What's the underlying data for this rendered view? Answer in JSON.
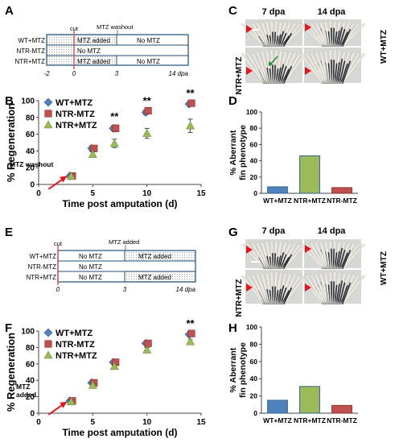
{
  "panel_letters": [
    "A",
    "B",
    "C",
    "D",
    "E",
    "F",
    "G",
    "H"
  ],
  "colors": {
    "wt_mtz": "#4f81bd",
    "ntr_mtz_minus": "#c0504d",
    "ntr_mtz_plus": "#9bbb59",
    "frame": "#1f4e79",
    "cut_line": "#d9362b",
    "arrow_red": "#e8141b",
    "arrow_green": "#1a8f2a"
  },
  "timeline_a": {
    "cut_label": "cut",
    "event_label": "MTZ washout",
    "rows": [
      {
        "label": "WT+MTZ",
        "seg1": "MTZ added",
        "seg2": "No MTZ"
      },
      {
        "label": "NTR-MTZ",
        "seg1": "No MTZ",
        "seg2": ""
      },
      {
        "label": "NTR+MTZ",
        "seg1": "MTZ added",
        "seg2": "No MTZ"
      }
    ],
    "ticks": [
      "-2",
      "0",
      "3",
      "14 dpa"
    ]
  },
  "timeline_e": {
    "cut_label": "cut",
    "event_label": "MTZ added",
    "rows": [
      {
        "label": "WT+MTZ",
        "seg1": "No MTZ",
        "seg2": "MTZ  added"
      },
      {
        "label": "NTR-MTZ",
        "seg1": "No MTZ",
        "seg2": ""
      },
      {
        "label": "NTR+MTZ",
        "seg1": "No MTZ",
        "seg2": "MTZ  added"
      }
    ],
    "ticks": [
      "0",
      "3",
      "14 dpa"
    ]
  },
  "photo_c": {
    "col_labels": [
      "7 dpa",
      "14 dpa"
    ],
    "row_labels": [
      "WT+MTZ",
      "NTR+MTZ"
    ],
    "arrow_icons": [
      "red-arrowhead-icon",
      "green-arrow-icon"
    ]
  },
  "photo_g": {
    "col_labels": [
      "7 dpa",
      "14 dpa"
    ],
    "row_labels": [
      "WT+MTZ",
      "NTR+MTZ"
    ],
    "arrow_icons": [
      "red-arrowhead-icon"
    ]
  },
  "chart_data": [
    {
      "panel": "B",
      "type": "scatter",
      "xlabel": "Time post amputation (d)",
      "ylabel": "% Regeneration",
      "xlim": [
        0,
        15
      ],
      "ylim": [
        0,
        100
      ],
      "xticks": [
        0,
        5,
        10,
        15
      ],
      "yticks": [
        0,
        20,
        40,
        60,
        80,
        100
      ],
      "legend_position": "top-left",
      "annotation": "MTZ washout",
      "significance": [
        {
          "x": 7,
          "label": "**"
        },
        {
          "x": 10,
          "label": "**"
        },
        {
          "x": 14,
          "label": "**"
        }
      ],
      "series": [
        {
          "name": "WT+MTZ",
          "marker": "diamond",
          "x": [
            3,
            5,
            7,
            10,
            14
          ],
          "y": [
            10,
            43,
            67,
            86,
            96
          ],
          "err": [
            2,
            3,
            3,
            3,
            2
          ]
        },
        {
          "name": "NTR-MTZ",
          "marker": "square",
          "x": [
            3,
            5,
            7,
            10,
            14
          ],
          "y": [
            10,
            43,
            67,
            88,
            97
          ],
          "err": [
            2,
            3,
            4,
            2,
            2
          ]
        },
        {
          "name": "NTR+MTZ",
          "marker": "triangle",
          "x": [
            3,
            5,
            7,
            10,
            14
          ],
          "y": [
            10,
            36,
            49,
            61,
            70
          ],
          "err": [
            2,
            3,
            5,
            6,
            8
          ]
        }
      ]
    },
    {
      "panel": "D",
      "type": "bar",
      "ylabel": "% Aberrant fin phenotype",
      "ylim": [
        0,
        100
      ],
      "yticks": [
        0,
        20,
        40,
        60,
        80,
        100
      ],
      "categories": [
        "WT+MTZ",
        "NTR+MTZ",
        "NTR-MTZ"
      ],
      "values": [
        8,
        46,
        7
      ]
    },
    {
      "panel": "F",
      "type": "scatter",
      "xlabel": "Time post amputation (d)",
      "ylabel": "% Regeneration",
      "xlim": [
        0,
        15
      ],
      "ylim": [
        0,
        100
      ],
      "xticks": [
        0,
        5,
        10,
        15
      ],
      "yticks": [
        0,
        20,
        40,
        60,
        80,
        100
      ],
      "legend_position": "top-left",
      "annotation": "MTZ added",
      "significance": [
        {
          "x": 14,
          "label": "**"
        }
      ],
      "series": [
        {
          "name": "WT+MTZ",
          "marker": "diamond",
          "x": [
            3,
            5,
            7,
            10,
            14
          ],
          "y": [
            15,
            37,
            62,
            85,
            96
          ],
          "err": [
            2,
            2,
            2,
            2,
            2
          ]
        },
        {
          "name": "NTR-MTZ",
          "marker": "square",
          "x": [
            3,
            5,
            7,
            10,
            14
          ],
          "y": [
            15,
            37,
            62,
            85,
            97
          ],
          "err": [
            2,
            2,
            2,
            2,
            2
          ]
        },
        {
          "name": "NTR+MTZ",
          "marker": "triangle",
          "x": [
            3,
            5,
            7,
            10,
            14
          ],
          "y": [
            14,
            34,
            57,
            77,
            87
          ],
          "err": [
            2,
            2,
            2,
            3,
            3
          ]
        }
      ]
    },
    {
      "panel": "H",
      "type": "bar",
      "ylabel": "% Aberrant fin phenotype",
      "ylim": [
        0,
        100
      ],
      "yticks": [
        0,
        20,
        40,
        60,
        80,
        100
      ],
      "categories": [
        "WT+MTZ",
        "NTR+MTZ",
        "NTR-MTZ"
      ],
      "values": [
        15,
        31,
        9
      ]
    }
  ]
}
